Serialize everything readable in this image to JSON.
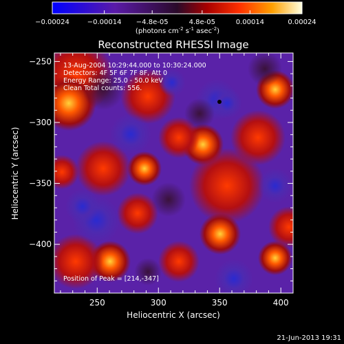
{
  "colorbar": {
    "ticks": [
      "-0.00024",
      "-0.00014",
      "-4.8e-05",
      "4.8e-05",
      "0.00014",
      "0.00024"
    ],
    "tick_values": [
      -0.00024,
      -0.00014,
      -4.8e-05,
      4.8e-05,
      0.00014,
      0.00024
    ],
    "range": [
      -0.00024,
      0.00024
    ],
    "units_main": "(photons cm",
    "units_exp1": "-2",
    "units_mid": " s",
    "units_exp2": "-1",
    "units_tail": " asec",
    "units_exp3": "-2",
    "units_close": ")"
  },
  "title": "Reconstructed RHESSI Image",
  "annotations": {
    "time_range": "13-Aug-2004 10:29:44.000 to 10:30:24.000",
    "detectors": "Detectors: 4F 5F 6F 7F 8F, Att 0",
    "energy": "Energy Range: 25.0 - 50.0 keV",
    "clean": "Clean    Total counts: 556.",
    "peak": "Position of Peak = [214,-347]"
  },
  "axes": {
    "xlabel": "Heliocentric X (arcsec)",
    "ylabel": "Heliocentric Y (arcsec)",
    "xlim": [
      215,
      410
    ],
    "ylim": [
      -440,
      -243
    ],
    "xticks": [
      250,
      300,
      350,
      400
    ],
    "yticks": [
      -250,
      -300,
      -350,
      -400
    ]
  },
  "footer": {
    "date": "21-Jun-2013 19:31"
  },
  "colors": {
    "background": "#000000",
    "text": "#ffffff"
  }
}
